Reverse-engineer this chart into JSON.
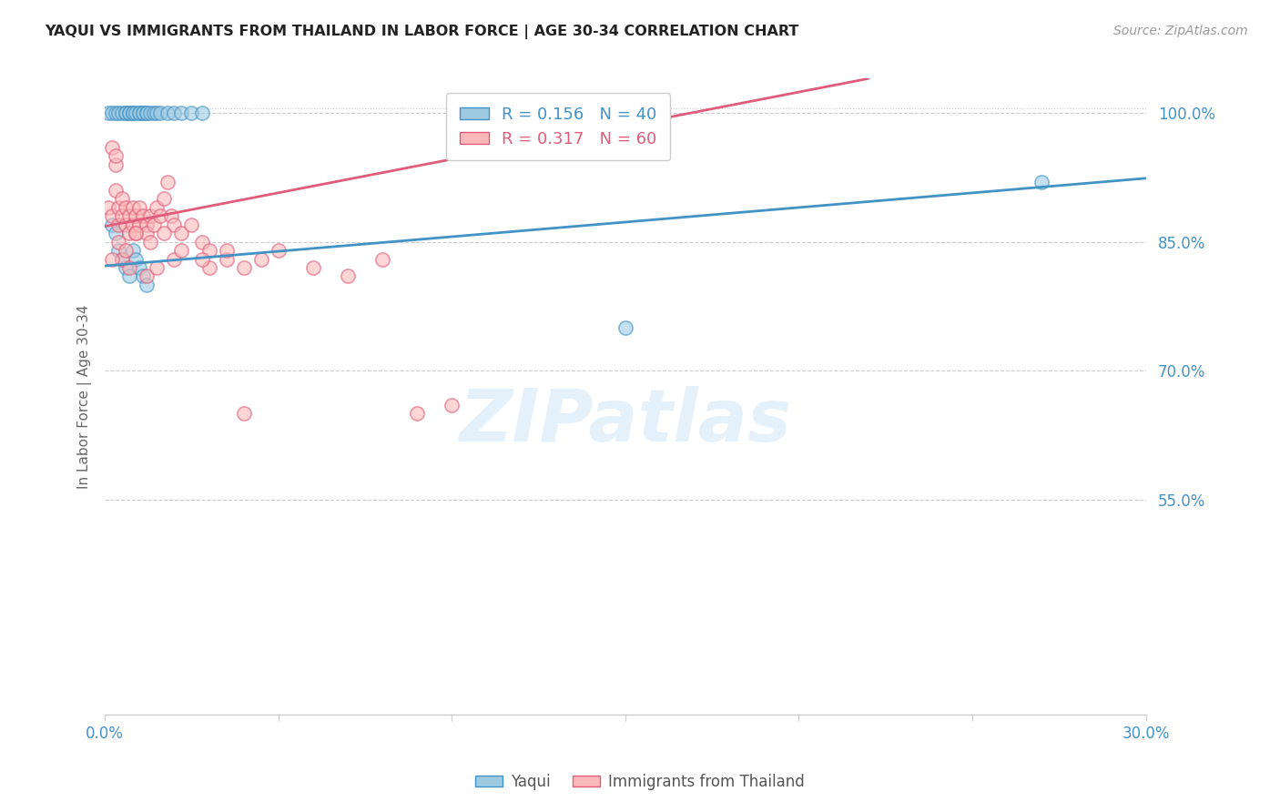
{
  "title": "YAQUI VS IMMIGRANTS FROM THAILAND IN LABOR FORCE | AGE 30-34 CORRELATION CHART",
  "source": "Source: ZipAtlas.com",
  "ylabel": "In Labor Force | Age 30-34",
  "xlim": [
    0.0,
    0.3
  ],
  "ylim": [
    0.3,
    1.04
  ],
  "xticks": [
    0.0,
    0.05,
    0.1,
    0.15,
    0.2,
    0.25,
    0.3
  ],
  "xticklabels": [
    "0.0%",
    "",
    "",
    "",
    "",
    "",
    "30.0%"
  ],
  "yticks": [
    0.55,
    0.7,
    0.85,
    1.0
  ],
  "yticklabels": [
    "55.0%",
    "70.0%",
    "85.0%",
    "100.0%"
  ],
  "legend_blue_r": "0.156",
  "legend_blue_n": "40",
  "legend_pink_r": "0.317",
  "legend_pink_n": "60",
  "blue_color": "#9ecae1",
  "pink_color": "#fcb9b9",
  "blue_edge_color": "#4292c6",
  "pink_edge_color": "#e05c7a",
  "blue_line_color": "#4292c6",
  "pink_line_color": "#e05c7a",
  "watermark": "ZIPatlas",
  "blue_line_x0": 0.0,
  "blue_line_y0": 0.822,
  "blue_line_x1": 0.3,
  "blue_line_y1": 0.924,
  "pink_line_x0": 0.0,
  "pink_line_y0": 0.868,
  "pink_line_x1": 0.22,
  "pink_line_y1": 1.04,
  "blue_scatter_x": [
    0.001,
    0.002,
    0.003,
    0.004,
    0.005,
    0.006,
    0.006,
    0.007,
    0.007,
    0.008,
    0.008,
    0.009,
    0.01,
    0.01,
    0.011,
    0.011,
    0.012,
    0.012,
    0.013,
    0.014,
    0.015,
    0.016,
    0.018,
    0.02,
    0.022,
    0.025,
    0.028,
    0.002,
    0.003,
    0.004,
    0.005,
    0.006,
    0.007,
    0.008,
    0.009,
    0.01,
    0.011,
    0.012,
    0.15,
    0.27
  ],
  "blue_scatter_y": [
    1.0,
    1.0,
    1.0,
    1.0,
    1.0,
    1.0,
    1.0,
    1.0,
    1.0,
    1.0,
    1.0,
    1.0,
    1.0,
    1.0,
    1.0,
    1.0,
    1.0,
    1.0,
    1.0,
    1.0,
    1.0,
    1.0,
    1.0,
    1.0,
    1.0,
    1.0,
    1.0,
    0.87,
    0.86,
    0.84,
    0.83,
    0.82,
    0.81,
    0.84,
    0.83,
    0.82,
    0.81,
    0.8,
    0.75,
    0.92
  ],
  "pink_scatter_x": [
    0.001,
    0.002,
    0.003,
    0.003,
    0.004,
    0.004,
    0.005,
    0.005,
    0.006,
    0.006,
    0.007,
    0.007,
    0.008,
    0.008,
    0.009,
    0.009,
    0.01,
    0.01,
    0.011,
    0.012,
    0.012,
    0.013,
    0.014,
    0.015,
    0.016,
    0.017,
    0.018,
    0.019,
    0.02,
    0.022,
    0.025,
    0.028,
    0.03,
    0.035,
    0.04,
    0.05,
    0.06,
    0.07,
    0.08,
    0.09,
    0.002,
    0.003,
    0.005,
    0.007,
    0.012,
    0.015,
    0.02,
    0.03,
    0.04,
    0.1,
    0.002,
    0.004,
    0.006,
    0.009,
    0.013,
    0.017,
    0.022,
    0.028,
    0.035,
    0.045
  ],
  "pink_scatter_y": [
    0.89,
    0.88,
    0.91,
    0.94,
    0.89,
    0.87,
    0.88,
    0.9,
    0.87,
    0.89,
    0.88,
    0.86,
    0.89,
    0.87,
    0.88,
    0.86,
    0.87,
    0.89,
    0.88,
    0.87,
    0.86,
    0.88,
    0.87,
    0.89,
    0.88,
    0.9,
    0.92,
    0.88,
    0.87,
    0.86,
    0.87,
    0.85,
    0.84,
    0.83,
    0.82,
    0.84,
    0.82,
    0.81,
    0.83,
    0.65,
    0.96,
    0.95,
    0.83,
    0.82,
    0.81,
    0.82,
    0.83,
    0.82,
    0.65,
    0.66,
    0.83,
    0.85,
    0.84,
    0.86,
    0.85,
    0.86,
    0.84,
    0.83,
    0.84,
    0.83
  ]
}
